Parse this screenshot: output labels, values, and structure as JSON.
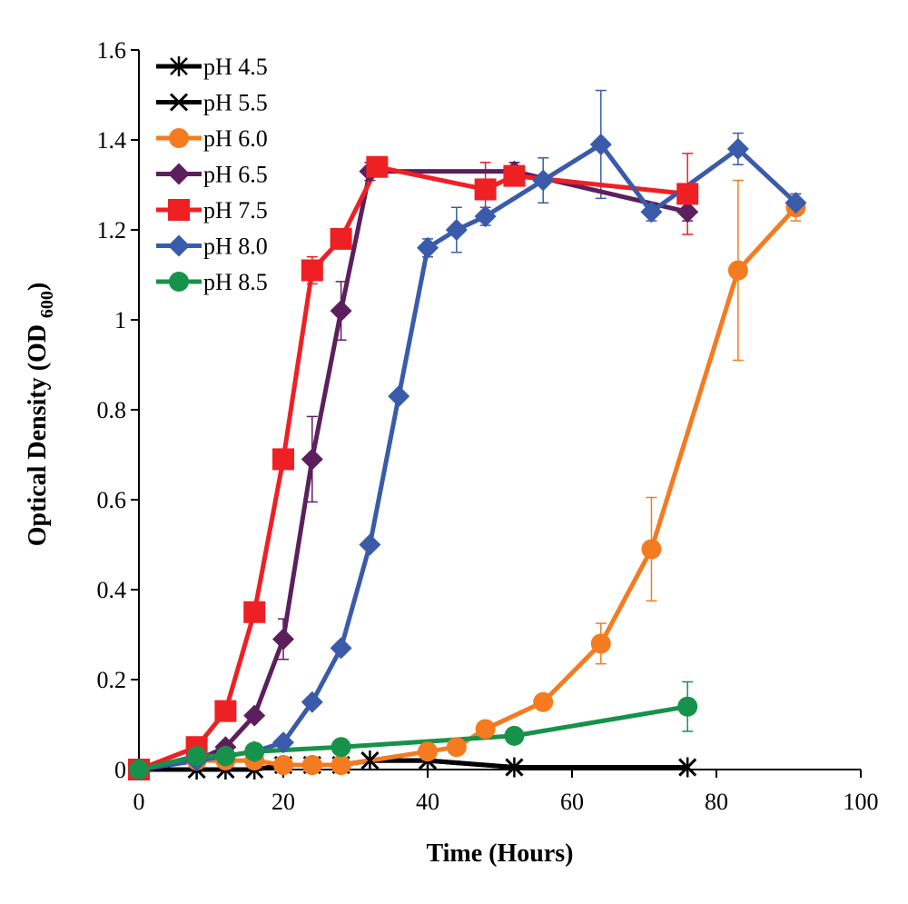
{
  "chart_data": {
    "type": "line",
    "title": "",
    "xlabel": "Time (Hours)",
    "ylabel": {
      "main": "Optical Density (OD ",
      "sub": "600",
      "close": ")"
    },
    "xlim": [
      0,
      100
    ],
    "ylim": [
      0,
      1.6
    ],
    "xticks": [
      0,
      20,
      40,
      60,
      80,
      100
    ],
    "yticks": [
      0,
      0.2,
      0.4,
      0.6,
      0.8,
      1,
      1.2,
      1.4,
      1.6
    ],
    "grid": false,
    "legend_position": "top-left",
    "series": [
      {
        "name": "pH 4.5",
        "color": "#000000",
        "marker": "asterisk",
        "x": [
          0,
          8,
          12,
          16,
          20,
          24,
          28,
          32,
          40,
          52,
          76
        ],
        "y": [
          0,
          0,
          0,
          0,
          0.01,
          0.01,
          0.01,
          0.02,
          0.02,
          0.005,
          0.005
        ],
        "err": []
      },
      {
        "name": "pH 5.5",
        "color": "#000000",
        "marker": "x",
        "x": [
          0,
          8,
          12,
          16,
          20,
          24,
          28,
          32,
          40,
          52,
          76
        ],
        "y": [
          0,
          0,
          0,
          0,
          0.01,
          0.01,
          0.01,
          0.02,
          0.02,
          0.005,
          0.005
        ],
        "err": []
      },
      {
        "name": "pH 6.0",
        "color": "#F47B20",
        "marker": "circle",
        "x": [
          0,
          8,
          12,
          16,
          20,
          24,
          28,
          40,
          44,
          48,
          56,
          64,
          71,
          83,
          91
        ],
        "y": [
          0,
          0.02,
          0.02,
          0.02,
          0.01,
          0.01,
          0.01,
          0.04,
          0.05,
          0.09,
          0.15,
          0.28,
          0.49,
          1.11,
          1.25
        ],
        "err": [
          0,
          0,
          0,
          0,
          0,
          0,
          0,
          0.01,
          0.01,
          0.01,
          0.01,
          0.045,
          0.115,
          0.2,
          0.03
        ]
      },
      {
        "name": "pH 6.5",
        "color": "#5C1F5E",
        "marker": "diamond",
        "x": [
          0,
          8,
          12,
          16,
          20,
          24,
          28,
          32,
          52,
          76
        ],
        "y": [
          0,
          0.02,
          0.05,
          0.12,
          0.29,
          0.69,
          1.02,
          1.33,
          1.33,
          1.24
        ],
        "err": [
          0,
          0,
          0,
          0.01,
          0.045,
          0.095,
          0.065,
          0.02,
          0.02,
          0.02
        ]
      },
      {
        "name": "pH 7.5",
        "color": "#EE2024",
        "marker": "square",
        "x": [
          0,
          8,
          12,
          16,
          20,
          24,
          28,
          33,
          48,
          52,
          76
        ],
        "y": [
          0,
          0.05,
          0.13,
          0.35,
          0.69,
          1.11,
          1.18,
          1.34,
          1.29,
          1.32,
          1.28
        ],
        "err": [
          0,
          0,
          0.01,
          0.02,
          0.02,
          0.03,
          0.02,
          0.02,
          0.06,
          0.02,
          0.09
        ]
      },
      {
        "name": "pH 8.0",
        "color": "#3A5BA9",
        "marker": "diamond",
        "x": [
          0,
          8,
          12,
          16,
          20,
          24,
          28,
          32,
          36,
          40,
          44,
          48,
          56,
          64,
          71,
          83,
          91
        ],
        "y": [
          0,
          0.02,
          0.03,
          0.04,
          0.06,
          0.15,
          0.27,
          0.5,
          0.83,
          1.16,
          1.2,
          1.23,
          1.31,
          1.39,
          1.24,
          1.38,
          1.26
        ],
        "err": [
          0,
          0,
          0,
          0,
          0,
          0,
          0,
          0,
          0,
          0.02,
          0.05,
          0.02,
          0.05,
          0.12,
          0.02,
          0.035,
          0.02
        ]
      },
      {
        "name": "pH 8.5",
        "color": "#17924A",
        "marker": "circle",
        "x": [
          0,
          8,
          12,
          16,
          28,
          52,
          76
        ],
        "y": [
          0,
          0.03,
          0.03,
          0.04,
          0.05,
          0.075,
          0.14
        ],
        "err": [
          0,
          0,
          0,
          0,
          0.01,
          0.01,
          0.055
        ]
      }
    ]
  }
}
